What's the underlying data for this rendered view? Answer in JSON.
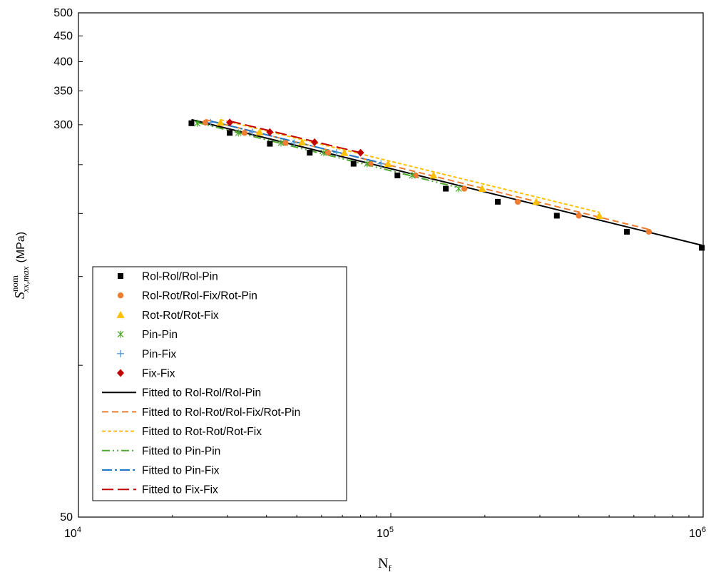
{
  "chart_data": {
    "type": "scatter",
    "x_scale": "log",
    "y_scale": "log",
    "xlim": [
      10000,
      1000000
    ],
    "ylim": [
      50,
      500
    ],
    "grid": false,
    "legend_position": "lower-left",
    "xlabel": {
      "main": "N",
      "sub": "f"
    },
    "ylabel": {
      "main": "S",
      "sup": "nom",
      "sub": "xx,max",
      "unit": "(MPa)"
    },
    "x_ticks": [
      {
        "value": 10000,
        "base": "10",
        "exp": "4"
      },
      {
        "value": 100000,
        "base": "10",
        "exp": "5"
      },
      {
        "value": 1000000,
        "base": "10",
        "exp": "6"
      }
    ],
    "y_ticks": [
      {
        "value": 50,
        "label": "50"
      },
      {
        "value": 300,
        "label": "300"
      },
      {
        "value": 350,
        "label": "350"
      },
      {
        "value": 400,
        "label": "400"
      },
      {
        "value": 450,
        "label": "450"
      },
      {
        "value": 500,
        "label": "500"
      }
    ],
    "y_minor_ticks": [
      100,
      150,
      200,
      250
    ],
    "series": [
      {
        "name": "Rol-Rol/Rol-Pin",
        "marker": "square",
        "color": "#000000",
        "x": [
          23000,
          30500,
          41000,
          55000,
          76000,
          105000,
          150000,
          220000,
          340000,
          570000,
          990000
        ],
        "y": [
          302,
          289,
          275,
          264,
          251,
          238,
          224,
          211,
          198,
          184,
          171
        ]
      },
      {
        "name": "Rol-Rot/Rol-Fix/Rot-Pin",
        "marker": "circle",
        "color": "#ED7D31",
        "x": [
          25500,
          34000,
          46000,
          63000,
          86000,
          120000,
          172000,
          255000,
          400000,
          670000
        ],
        "y": [
          303,
          289,
          276,
          264,
          251,
          238,
          224,
          211,
          198,
          184
        ]
      },
      {
        "name": "Rot-Rot/Rot-Fix",
        "marker": "triangle",
        "color": "#FFC000",
        "x": [
          28500,
          38000,
          52000,
          71000,
          98000,
          137000,
          196000,
          292000,
          465000
        ],
        "y": [
          303,
          290,
          277,
          264,
          251,
          238,
          224,
          211,
          198
        ]
      },
      {
        "name": "Pin-Pin",
        "marker": "asterisk",
        "color": "#4EA72E",
        "x": [
          24000,
          32500,
          44500,
          61000,
          84000,
          117000,
          165000
        ],
        "y": [
          302,
          289,
          276,
          264,
          251,
          238,
          224
        ]
      },
      {
        "name": "Pin-Fix",
        "marker": "plus",
        "color": "#5B9BD5",
        "x": [
          26500,
          36000,
          49000,
          67000,
          93000
        ],
        "y": [
          303,
          290,
          276,
          264,
          251
        ]
      },
      {
        "name": "Fix-Fix",
        "marker": "diamond",
        "color": "#C00000",
        "x": [
          30500,
          41000,
          57000,
          80000
        ],
        "y": [
          303,
          290,
          277,
          264
        ]
      }
    ],
    "fits": [
      {
        "name": "Fitted to Rol-Rol/Rol-Pin",
        "dash": "solid",
        "color": "#000000",
        "x": [
          23000,
          990000
        ],
        "y": [
          307,
          173
        ]
      },
      {
        "name": "Fitted to Rol-Rot/Rol-Fix/Rot-Pin",
        "dash": "dash",
        "color": "#ED7D31",
        "x": [
          25500,
          670000
        ],
        "y": [
          307,
          186
        ]
      },
      {
        "name": "Fitted to Rot-Rot/Rot-Fix",
        "dash": "short-dash",
        "color": "#FFC000",
        "x": [
          28500,
          465000
        ],
        "y": [
          307,
          201
        ]
      },
      {
        "name": "Fitted to Pin-Pin",
        "dash": "dash-dot-dot",
        "color": "#4EA72E",
        "x": [
          24000,
          165000
        ],
        "y": [
          303,
          225
        ]
      },
      {
        "name": "Fitted to Pin-Fix",
        "dash": "dash-dot",
        "color": "#1F77C8",
        "x": [
          26500,
          93000
        ],
        "y": [
          305,
          252
        ]
      },
      {
        "name": "Fitted to Fix-Fix",
        "dash": "long-dash",
        "color": "#C00000",
        "x": [
          30500,
          80000
        ],
        "y": [
          305,
          264
        ]
      }
    ]
  }
}
